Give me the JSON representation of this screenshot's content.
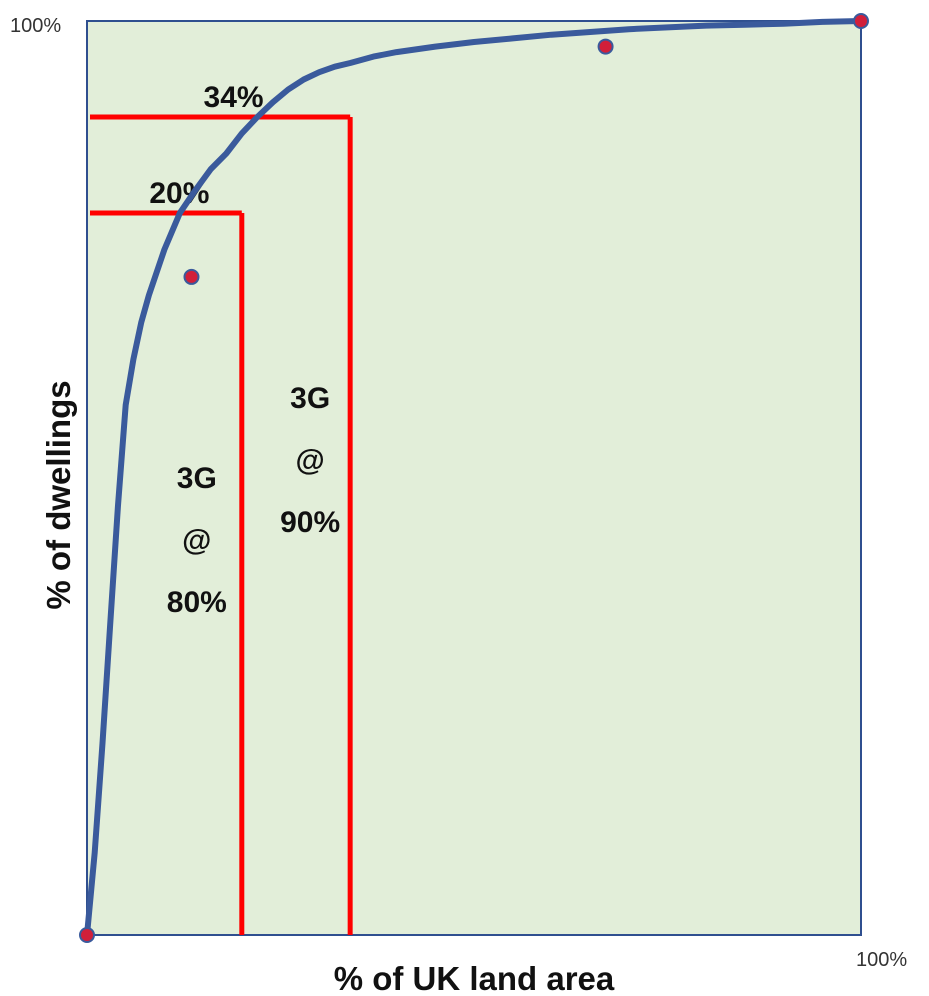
{
  "chart_data": {
    "type": "line",
    "xlabel": "% of UK land area",
    "ylabel": "% of dwellings",
    "xlim": [
      0,
      100
    ],
    "ylim": [
      0,
      100
    ],
    "grid": false,
    "x_max_label": "100%",
    "y_max_label": "100%",
    "colors": {
      "plot_background": "#e2eed9",
      "plot_border": "#2f4f8f",
      "curve": "#3a5a9c",
      "guide_lines": "#ff0000",
      "markers": "#d11f3a"
    },
    "series": [
      {
        "x": [
          0,
          1,
          2,
          3,
          4,
          5,
          6,
          7,
          8,
          10,
          12,
          14,
          16,
          18,
          20,
          22,
          24,
          26,
          28,
          30,
          32,
          34,
          37,
          40,
          45,
          50,
          55,
          60,
          65,
          70,
          75,
          80,
          85,
          90,
          95,
          100
        ],
        "y": [
          0,
          9,
          21,
          34,
          47,
          58,
          63,
          67,
          70,
          75,
          79,
          81.5,
          83.8,
          85.5,
          87.7,
          89.5,
          91.1,
          92.5,
          93.6,
          94.4,
          95,
          95.4,
          96.1,
          96.6,
          97.2,
          97.7,
          98.1,
          98.5,
          98.8,
          99.1,
          99.3,
          99.5,
          99.6,
          99.7,
          99.9,
          100
        ]
      }
    ],
    "markers": [
      {
        "x": 0,
        "y": 0
      },
      {
        "x": 13.5,
        "y": 72
      },
      {
        "x": 67,
        "y": 97.2
      },
      {
        "x": 100,
        "y": 100
      }
    ],
    "guides": [
      {
        "x": 20,
        "y": 79,
        "label": "20%",
        "coverage": [
          "3G",
          "@",
          "80%"
        ]
      },
      {
        "x": 34,
        "y": 89.5,
        "label": "34%",
        "coverage": [
          "3G",
          "@",
          "90%"
        ]
      }
    ]
  }
}
